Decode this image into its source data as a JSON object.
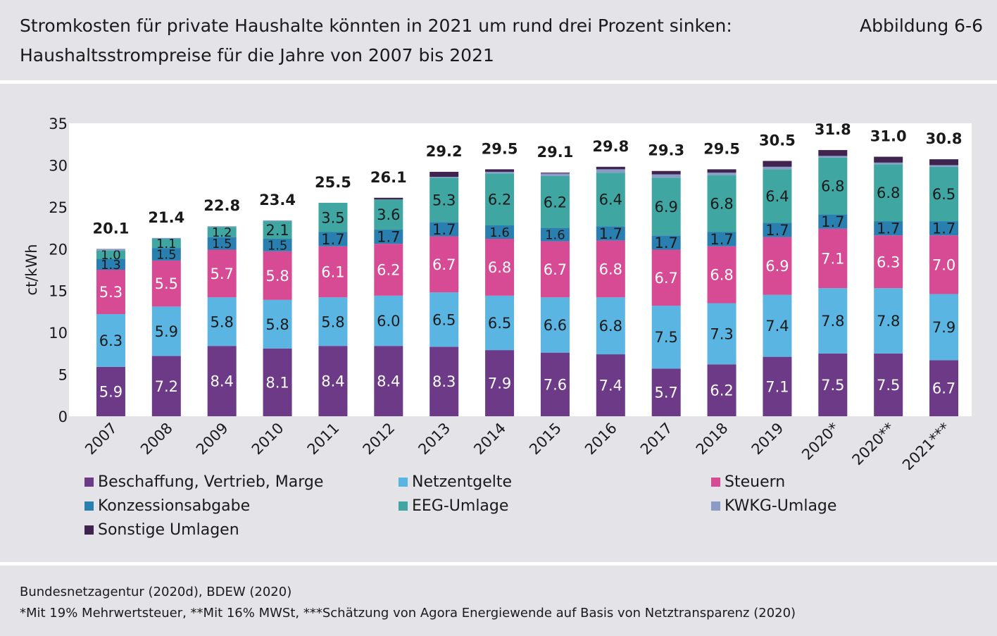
{
  "header": {
    "title_line1": "Stromkosten für private Haushalte könnten in 2021 um rund drei Prozent sinken:",
    "title_line2": "Haushaltsstrompreise für die Jahre von 2007 bis 2021",
    "figure_label": "Abbildung 6-6"
  },
  "footer": {
    "source": "Bundesnetzagentur (2020d), BDEW (2020)",
    "note": "*Mit 19% Mehrwertsteuer, **Mit 16% MWSt, ***Schätzung von Agora Energiewende auf Basis von Netztransparenz (2020)"
  },
  "chart_data": {
    "type": "bar",
    "stacked": true,
    "categories": [
      "2007",
      "2008",
      "2009",
      "2010",
      "2011",
      "2012",
      "2013",
      "2014",
      "2015",
      "2016",
      "2017",
      "2018",
      "2019",
      "2020*",
      "2020**",
      "2021***"
    ],
    "ylabel": "ct/kWh",
    "ylim": [
      0,
      35
    ],
    "yticks": [
      0,
      5,
      10,
      15,
      20,
      25,
      30,
      35
    ],
    "grid": false,
    "legend_position": "bottom",
    "totals": [
      "20.1",
      "21.4",
      "22.8",
      "23.4",
      "25.5",
      "26.1",
      "29.2",
      "29.5",
      "29.1",
      "29.8",
      "29.3",
      "29.5",
      "30.5",
      "31.8",
      "31.0",
      "30.8"
    ],
    "series": [
      {
        "name": "Beschaffung, Vertrieb, Marge",
        "color": "#6c3a87",
        "label_color": "#ffffff",
        "values": [
          5.9,
          7.2,
          8.4,
          8.1,
          8.4,
          8.4,
          8.3,
          7.9,
          7.6,
          7.4,
          5.7,
          6.2,
          7.1,
          7.5,
          7.5,
          6.7
        ],
        "labels": [
          "5.9",
          "7.2",
          "8.4",
          "8.1",
          "8.4",
          "8.4",
          "8.3",
          "7.9",
          "7.6",
          "7.4",
          "5.7",
          "6.2",
          "7.1",
          "7.5",
          "7.5",
          "6.7"
        ]
      },
      {
        "name": "Netzentgelte",
        "color": "#5bb5e3",
        "label_color": "#1a1a1a",
        "values": [
          6.3,
          5.9,
          5.8,
          5.8,
          5.8,
          6.0,
          6.5,
          6.5,
          6.6,
          6.8,
          7.5,
          7.3,
          7.4,
          7.8,
          7.8,
          7.9
        ],
        "labels": [
          "6.3",
          "5.9",
          "5.8",
          "5.8",
          "5.8",
          "6.0",
          "6.5",
          "6.5",
          "6.6",
          "6.8",
          "7.5",
          "7.3",
          "7.4",
          "7.8",
          "7.8",
          "7.9"
        ]
      },
      {
        "name": "Steuern",
        "color": "#d64b93",
        "label_color": "#ffffff",
        "values": [
          5.3,
          5.5,
          5.7,
          5.8,
          6.1,
          6.2,
          6.7,
          6.8,
          6.7,
          6.8,
          6.7,
          6.8,
          6.9,
          7.1,
          6.3,
          7.0
        ],
        "labels": [
          "5.3",
          "5.5",
          "5.7",
          "5.8",
          "6.1",
          "6.2",
          "6.7",
          "6.8",
          "6.7",
          "6.8",
          "6.7",
          "6.8",
          "6.9",
          "7.1",
          "6.3",
          "7.0"
        ]
      },
      {
        "name": "Konzessionsabgabe",
        "color": "#2a7fb1",
        "label_color": "#1a1a1a",
        "values": [
          1.3,
          1.5,
          1.5,
          1.5,
          1.7,
          1.7,
          1.7,
          1.6,
          1.6,
          1.7,
          1.7,
          1.7,
          1.7,
          1.7,
          1.7,
          1.7
        ],
        "labels": [
          "1.3",
          "1.5",
          "1.5",
          "1.5",
          "1.7",
          "1.7",
          "1.7",
          "1.6",
          "1.6",
          "1.7",
          "1.7",
          "1.7",
          "1.7",
          "1.7",
          "1.7",
          "1.7"
        ]
      },
      {
        "name": "EEG-Umlage",
        "color": "#3fa6a2",
        "label_color": "#1a1a1a",
        "values": [
          1.0,
          1.1,
          1.2,
          2.1,
          3.5,
          3.6,
          5.3,
          6.2,
          6.2,
          6.4,
          6.9,
          6.8,
          6.4,
          6.8,
          6.8,
          6.5
        ],
        "labels": [
          "1.0",
          "1.1",
          "1.2",
          "2.1",
          "3.5",
          "3.6",
          "5.3",
          "6.2",
          "6.2",
          "6.4",
          "6.9",
          "6.8",
          "6.4",
          "6.8",
          "6.8",
          "6.5"
        ]
      },
      {
        "name": "KWKG-Umlage",
        "color": "#8a9bc8",
        "label_color": "#1a1a1a",
        "values": [
          0.2,
          0.1,
          0.1,
          0.1,
          0.0,
          0.0,
          0.1,
          0.2,
          0.3,
          0.4,
          0.4,
          0.3,
          0.3,
          0.2,
          0.2,
          0.2
        ],
        "labels": []
      },
      {
        "name": "Sonstige Umlagen",
        "color": "#3f2450",
        "label_color": "#ffffff",
        "values": [
          0.0,
          0.0,
          0.0,
          0.0,
          0.0,
          0.2,
          0.6,
          0.3,
          0.1,
          0.3,
          0.4,
          0.4,
          0.7,
          0.7,
          0.7,
          0.7
        ],
        "labels": []
      }
    ]
  }
}
